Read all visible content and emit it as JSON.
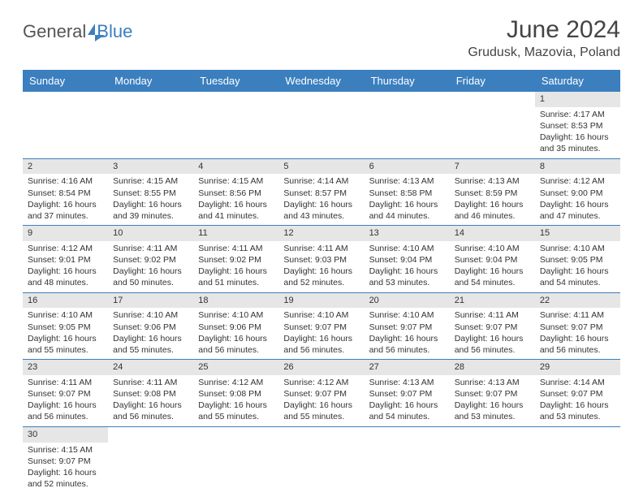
{
  "logo": {
    "part_a": "General",
    "part_b": "Blue"
  },
  "title": "June 2024",
  "location": "Grudusk, Mazovia, Poland",
  "colors": {
    "header_bg": "#3b7fbf",
    "header_text": "#ffffff",
    "daynum_bg": "#e6e6e6",
    "cell_border": "#3b7fbf",
    "body_text": "#333333"
  },
  "day_headers": [
    "Sunday",
    "Monday",
    "Tuesday",
    "Wednesday",
    "Thursday",
    "Friday",
    "Saturday"
  ],
  "weeks": [
    [
      null,
      null,
      null,
      null,
      null,
      null,
      {
        "n": "1",
        "sunrise": "Sunrise: 4:17 AM",
        "sunset": "Sunset: 8:53 PM",
        "daylight": "Daylight: 16 hours and 35 minutes."
      }
    ],
    [
      {
        "n": "2",
        "sunrise": "Sunrise: 4:16 AM",
        "sunset": "Sunset: 8:54 PM",
        "daylight": "Daylight: 16 hours and 37 minutes."
      },
      {
        "n": "3",
        "sunrise": "Sunrise: 4:15 AM",
        "sunset": "Sunset: 8:55 PM",
        "daylight": "Daylight: 16 hours and 39 minutes."
      },
      {
        "n": "4",
        "sunrise": "Sunrise: 4:15 AM",
        "sunset": "Sunset: 8:56 PM",
        "daylight": "Daylight: 16 hours and 41 minutes."
      },
      {
        "n": "5",
        "sunrise": "Sunrise: 4:14 AM",
        "sunset": "Sunset: 8:57 PM",
        "daylight": "Daylight: 16 hours and 43 minutes."
      },
      {
        "n": "6",
        "sunrise": "Sunrise: 4:13 AM",
        "sunset": "Sunset: 8:58 PM",
        "daylight": "Daylight: 16 hours and 44 minutes."
      },
      {
        "n": "7",
        "sunrise": "Sunrise: 4:13 AM",
        "sunset": "Sunset: 8:59 PM",
        "daylight": "Daylight: 16 hours and 46 minutes."
      },
      {
        "n": "8",
        "sunrise": "Sunrise: 4:12 AM",
        "sunset": "Sunset: 9:00 PM",
        "daylight": "Daylight: 16 hours and 47 minutes."
      }
    ],
    [
      {
        "n": "9",
        "sunrise": "Sunrise: 4:12 AM",
        "sunset": "Sunset: 9:01 PM",
        "daylight": "Daylight: 16 hours and 48 minutes."
      },
      {
        "n": "10",
        "sunrise": "Sunrise: 4:11 AM",
        "sunset": "Sunset: 9:02 PM",
        "daylight": "Daylight: 16 hours and 50 minutes."
      },
      {
        "n": "11",
        "sunrise": "Sunrise: 4:11 AM",
        "sunset": "Sunset: 9:02 PM",
        "daylight": "Daylight: 16 hours and 51 minutes."
      },
      {
        "n": "12",
        "sunrise": "Sunrise: 4:11 AM",
        "sunset": "Sunset: 9:03 PM",
        "daylight": "Daylight: 16 hours and 52 minutes."
      },
      {
        "n": "13",
        "sunrise": "Sunrise: 4:10 AM",
        "sunset": "Sunset: 9:04 PM",
        "daylight": "Daylight: 16 hours and 53 minutes."
      },
      {
        "n": "14",
        "sunrise": "Sunrise: 4:10 AM",
        "sunset": "Sunset: 9:04 PM",
        "daylight": "Daylight: 16 hours and 54 minutes."
      },
      {
        "n": "15",
        "sunrise": "Sunrise: 4:10 AM",
        "sunset": "Sunset: 9:05 PM",
        "daylight": "Daylight: 16 hours and 54 minutes."
      }
    ],
    [
      {
        "n": "16",
        "sunrise": "Sunrise: 4:10 AM",
        "sunset": "Sunset: 9:05 PM",
        "daylight": "Daylight: 16 hours and 55 minutes."
      },
      {
        "n": "17",
        "sunrise": "Sunrise: 4:10 AM",
        "sunset": "Sunset: 9:06 PM",
        "daylight": "Daylight: 16 hours and 55 minutes."
      },
      {
        "n": "18",
        "sunrise": "Sunrise: 4:10 AM",
        "sunset": "Sunset: 9:06 PM",
        "daylight": "Daylight: 16 hours and 56 minutes."
      },
      {
        "n": "19",
        "sunrise": "Sunrise: 4:10 AM",
        "sunset": "Sunset: 9:07 PM",
        "daylight": "Daylight: 16 hours and 56 minutes."
      },
      {
        "n": "20",
        "sunrise": "Sunrise: 4:10 AM",
        "sunset": "Sunset: 9:07 PM",
        "daylight": "Daylight: 16 hours and 56 minutes."
      },
      {
        "n": "21",
        "sunrise": "Sunrise: 4:11 AM",
        "sunset": "Sunset: 9:07 PM",
        "daylight": "Daylight: 16 hours and 56 minutes."
      },
      {
        "n": "22",
        "sunrise": "Sunrise: 4:11 AM",
        "sunset": "Sunset: 9:07 PM",
        "daylight": "Daylight: 16 hours and 56 minutes."
      }
    ],
    [
      {
        "n": "23",
        "sunrise": "Sunrise: 4:11 AM",
        "sunset": "Sunset: 9:07 PM",
        "daylight": "Daylight: 16 hours and 56 minutes."
      },
      {
        "n": "24",
        "sunrise": "Sunrise: 4:11 AM",
        "sunset": "Sunset: 9:08 PM",
        "daylight": "Daylight: 16 hours and 56 minutes."
      },
      {
        "n": "25",
        "sunrise": "Sunrise: 4:12 AM",
        "sunset": "Sunset: 9:08 PM",
        "daylight": "Daylight: 16 hours and 55 minutes."
      },
      {
        "n": "26",
        "sunrise": "Sunrise: 4:12 AM",
        "sunset": "Sunset: 9:07 PM",
        "daylight": "Daylight: 16 hours and 55 minutes."
      },
      {
        "n": "27",
        "sunrise": "Sunrise: 4:13 AM",
        "sunset": "Sunset: 9:07 PM",
        "daylight": "Daylight: 16 hours and 54 minutes."
      },
      {
        "n": "28",
        "sunrise": "Sunrise: 4:13 AM",
        "sunset": "Sunset: 9:07 PM",
        "daylight": "Daylight: 16 hours and 53 minutes."
      },
      {
        "n": "29",
        "sunrise": "Sunrise: 4:14 AM",
        "sunset": "Sunset: 9:07 PM",
        "daylight": "Daylight: 16 hours and 53 minutes."
      }
    ],
    [
      {
        "n": "30",
        "sunrise": "Sunrise: 4:15 AM",
        "sunset": "Sunset: 9:07 PM",
        "daylight": "Daylight: 16 hours and 52 minutes."
      },
      null,
      null,
      null,
      null,
      null,
      null
    ]
  ]
}
